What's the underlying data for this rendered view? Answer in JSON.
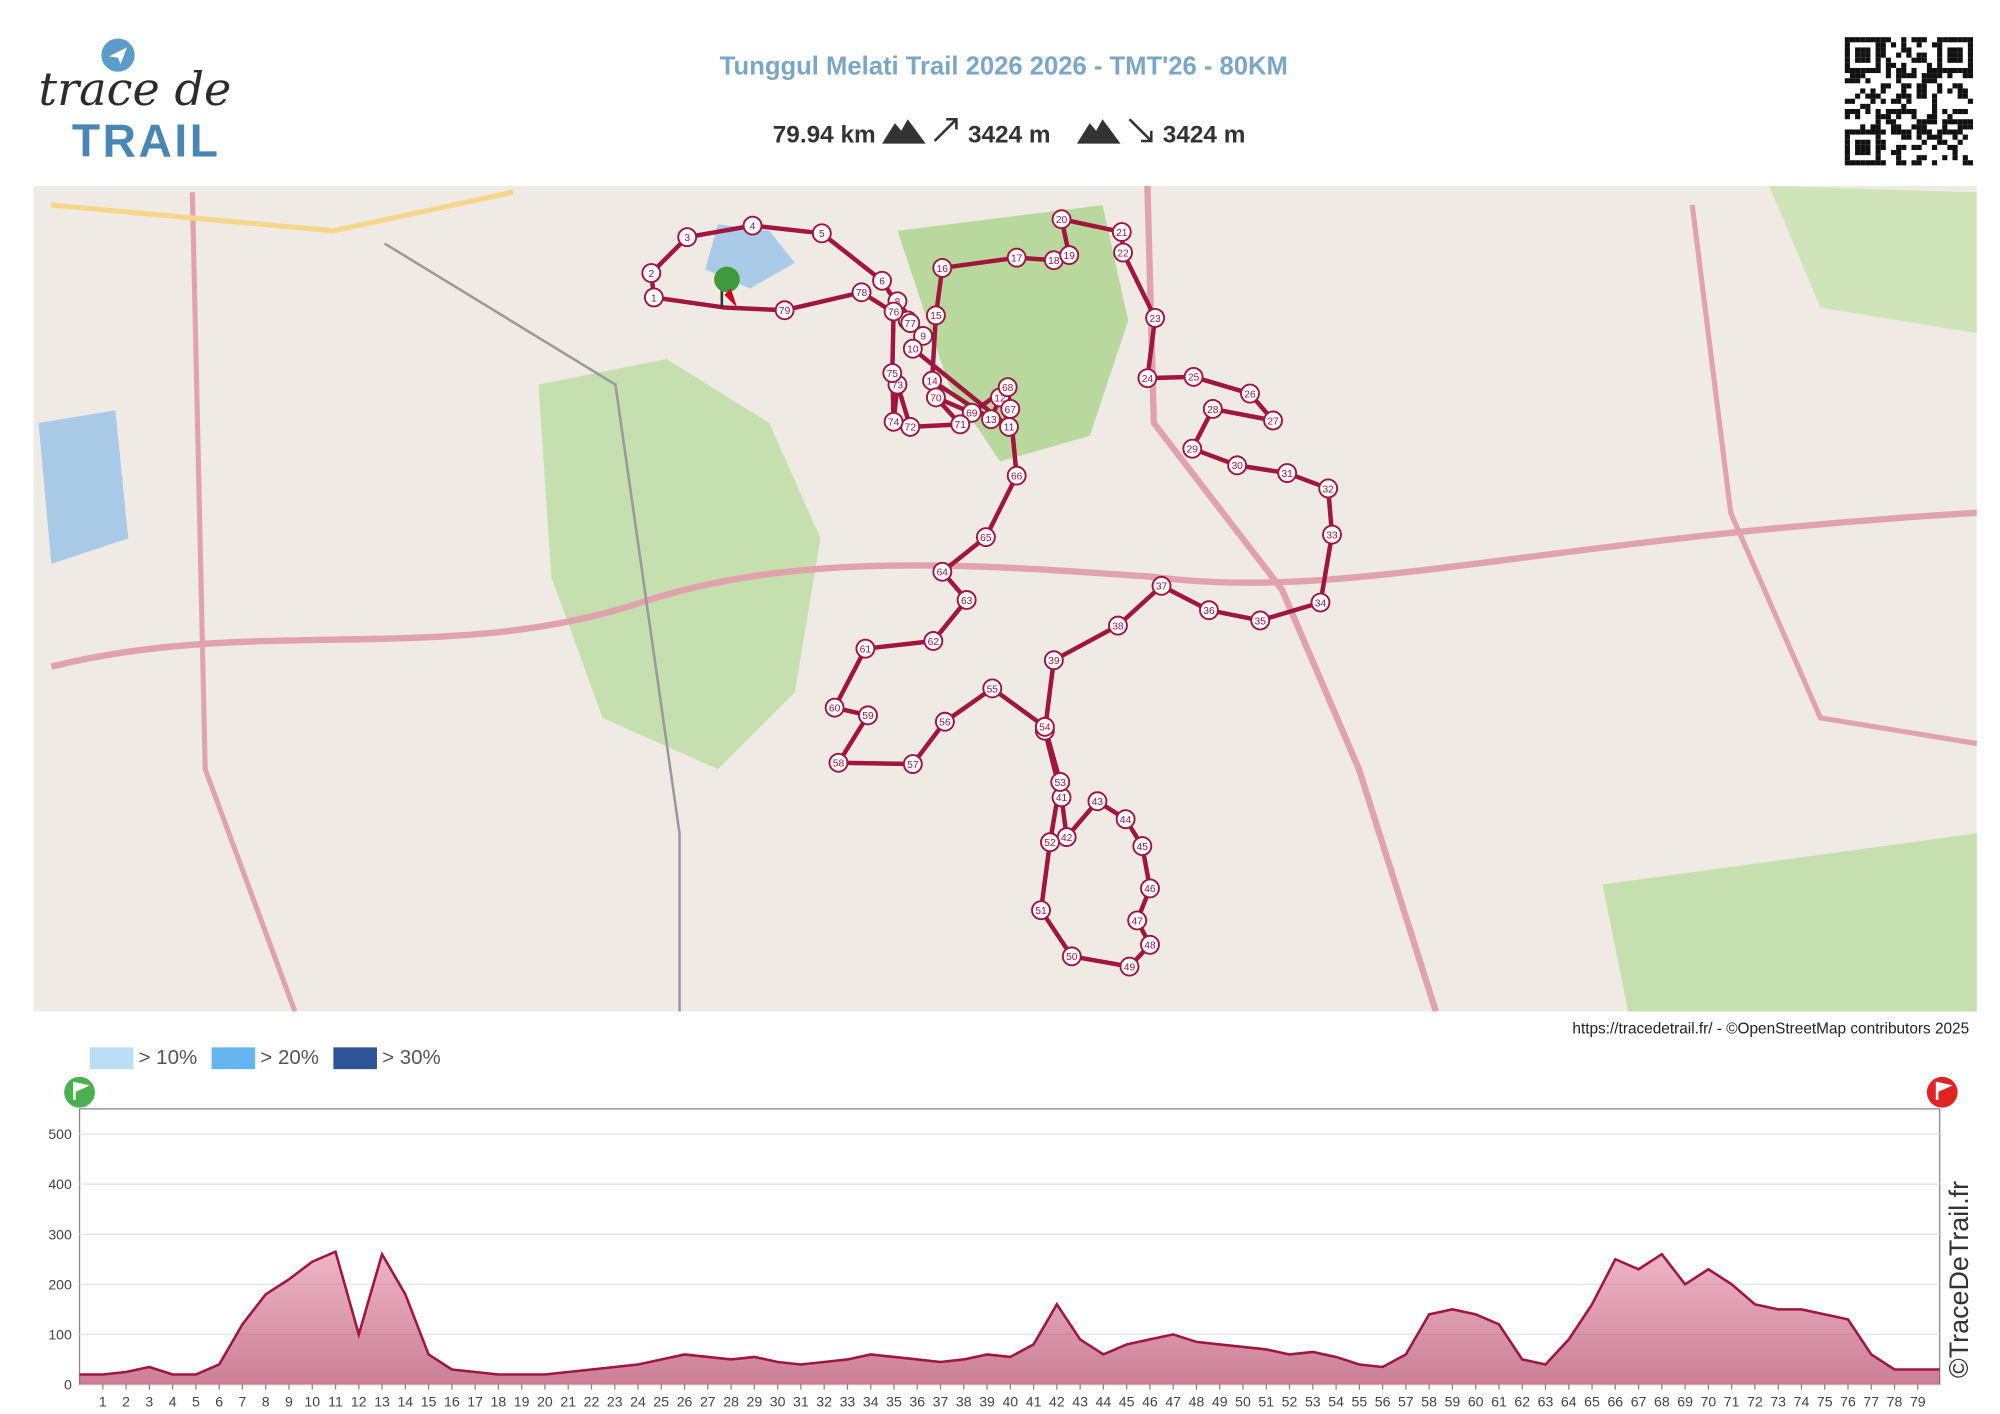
{
  "header": {
    "logo_top": "trace de",
    "logo_bottom": "TRAIL",
    "title": "Tunggul Melati Trail 2026 2026 - TMT'26 - 80KM",
    "distance": "79.94 km",
    "ascent": "3424 m",
    "descent": "3424 m"
  },
  "map": {
    "checkpoints": [
      "1",
      "2",
      "3",
      "4",
      "5",
      "6",
      "7",
      "8",
      "9",
      "10",
      "11",
      "12",
      "13",
      "14",
      "15",
      "16",
      "17",
      "18",
      "19",
      "20",
      "21",
      "22",
      "23",
      "24",
      "25",
      "26",
      "27",
      "28",
      "29",
      "30",
      "31",
      "32",
      "33",
      "34",
      "35",
      "36",
      "37",
      "38",
      "39",
      "40",
      "41",
      "42",
      "43",
      "44",
      "45",
      "46",
      "47",
      "48",
      "49",
      "50",
      "51",
      "52",
      "53",
      "54",
      "55",
      "56",
      "57",
      "58",
      "59",
      "60",
      "61",
      "62",
      "63",
      "64",
      "65",
      "66",
      "67",
      "68",
      "69",
      "70",
      "71",
      "72",
      "73",
      "74",
      "75",
      "76",
      "77",
      "78",
      "79"
    ],
    "attribution": "https://tracedetrail.fr/ - ©OpenStreetMap contributors 2025"
  },
  "legend": [
    "> 10%",
    "> 20%",
    "> 30%"
  ],
  "watermark": "©TraceDeTrail.fr",
  "chart_data": {
    "type": "area",
    "color": "#a0163f",
    "x": [
      0,
      1,
      2,
      3,
      4,
      5,
      6,
      7,
      8,
      9,
      10,
      11,
      12,
      13,
      14,
      15,
      16,
      17,
      18,
      19,
      20,
      21,
      22,
      23,
      24,
      25,
      26,
      27,
      28,
      29,
      30,
      31,
      32,
      33,
      34,
      35,
      36,
      37,
      38,
      39,
      40,
      41,
      42,
      43,
      44,
      45,
      46,
      47,
      48,
      49,
      50,
      51,
      52,
      53,
      54,
      55,
      56,
      57,
      58,
      59,
      60,
      61,
      62,
      63,
      64,
      65,
      66,
      67,
      68,
      69,
      70,
      71,
      72,
      73,
      74,
      75,
      76,
      77,
      78,
      79,
      79.94
    ],
    "values": [
      20,
      20,
      25,
      35,
      20,
      20,
      40,
      120,
      180,
      210,
      245,
      265,
      100,
      260,
      180,
      60,
      30,
      25,
      20,
      20,
      20,
      25,
      30,
      35,
      40,
      50,
      60,
      55,
      50,
      55,
      45,
      40,
      45,
      50,
      60,
      55,
      50,
      45,
      50,
      60,
      55,
      80,
      160,
      90,
      60,
      80,
      90,
      100,
      85,
      80,
      75,
      70,
      60,
      65,
      55,
      40,
      35,
      60,
      140,
      150,
      140,
      120,
      50,
      40,
      90,
      160,
      250,
      230,
      260,
      200,
      230,
      200,
      160,
      150,
      150,
      140,
      130,
      60,
      30,
      30,
      30
    ],
    "xlim": [
      0,
      79.94
    ],
    "ylim": [
      0,
      550
    ],
    "xticks": [
      1,
      2,
      3,
      4,
      5,
      6,
      7,
      8,
      9,
      10,
      11,
      12,
      13,
      14,
      15,
      16,
      17,
      18,
      19,
      20,
      21,
      22,
      23,
      24,
      25,
      26,
      27,
      28,
      29,
      30,
      31,
      32,
      33,
      34,
      35,
      36,
      37,
      38,
      39,
      40,
      41,
      42,
      43,
      44,
      45,
      46,
      47,
      48,
      49,
      50,
      51,
      52,
      53,
      54,
      55,
      56,
      57,
      58,
      59,
      60,
      61,
      62,
      63,
      64,
      65,
      66,
      67,
      68,
      69,
      70,
      71,
      72,
      73,
      74,
      75,
      76,
      77,
      78,
      79
    ],
    "yticks": [
      0,
      100,
      200,
      300,
      400,
      500
    ],
    "grid": true
  }
}
